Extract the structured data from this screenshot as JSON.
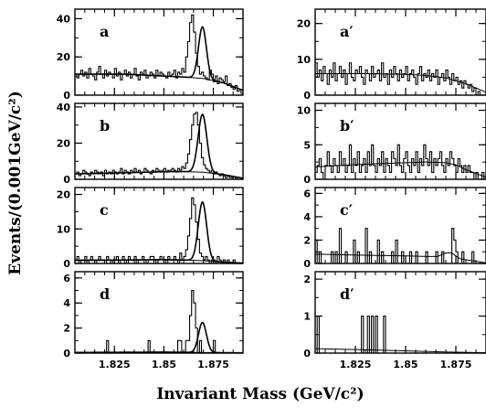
{
  "figure": {
    "ylabel": "Events/(0.001GeV/c²)",
    "xlabel": "Invariant Mass (GeV/c²)"
  },
  "chart_data": [
    {
      "type": "histogram",
      "panel": "a",
      "column": "left",
      "xlim": [
        1.805,
        1.89
      ],
      "ylim": [
        0,
        45
      ],
      "yticks": [
        "0",
        "20",
        "40"
      ],
      "xticks": [
        "1.825",
        "1.85",
        "1.875"
      ],
      "show_x_ticklabels": false,
      "bin_start": 1.805,
      "bin_width": 0.001,
      "counts": [
        10,
        9,
        11,
        13,
        10,
        12,
        9,
        14,
        11,
        10,
        8,
        12,
        15,
        11,
        9,
        13,
        10,
        12,
        11,
        9,
        14,
        10,
        12,
        8,
        11,
        13,
        10,
        12,
        9,
        11,
        14,
        10,
        8,
        12,
        11,
        13,
        9,
        10,
        12,
        11,
        9,
        13,
        10,
        12,
        11,
        10,
        9,
        12,
        10,
        11,
        13,
        9,
        12,
        11,
        14,
        12,
        20,
        28,
        38,
        42,
        33,
        22,
        15,
        11,
        12,
        10,
        9,
        8,
        13,
        11,
        7,
        10,
        6,
        9,
        8,
        7,
        10,
        5,
        6,
        4,
        3,
        5,
        2,
        3,
        1
      ],
      "fit": {
        "background": [
          [
            1.805,
            11
          ],
          [
            1.83,
            11
          ],
          [
            1.85,
            10
          ],
          [
            1.86,
            9.5
          ],
          [
            1.87,
            8.7
          ],
          [
            1.88,
            6.5
          ],
          [
            1.89,
            2.5
          ]
        ],
        "peak_center": 1.8695,
        "peak_sigma": 0.002,
        "peak_amplitude": 27
      }
    },
    {
      "type": "histogram",
      "panel": "b",
      "column": "left",
      "xlim": [
        1.805,
        1.89
      ],
      "ylim": [
        0,
        42
      ],
      "yticks": [
        "0",
        "20",
        "40"
      ],
      "xticks": [
        "1.825",
        "1.85",
        "1.875"
      ],
      "show_x_ticklabels": false,
      "bin_start": 1.805,
      "bin_width": 0.001,
      "counts": [
        3,
        4,
        2,
        3,
        5,
        4,
        3,
        2,
        4,
        3,
        5,
        4,
        3,
        4,
        2,
        5,
        3,
        4,
        3,
        5,
        4,
        3,
        4,
        6,
        3,
        5,
        4,
        3,
        5,
        4,
        6,
        4,
        5,
        3,
        4,
        6,
        5,
        4,
        3,
        5,
        4,
        6,
        5,
        4,
        5,
        6,
        4,
        5,
        5,
        6,
        5,
        4,
        6,
        5,
        7,
        6,
        9,
        14,
        22,
        30,
        36,
        37,
        30,
        20,
        12,
        8,
        6,
        5,
        4,
        5,
        3,
        4,
        3,
        2,
        3,
        2,
        1,
        2,
        1,
        1,
        0,
        1,
        0,
        0,
        0
      ],
      "fit": {
        "background": [
          [
            1.805,
            3
          ],
          [
            1.83,
            3.6
          ],
          [
            1.85,
            4.2
          ],
          [
            1.86,
            4.3
          ],
          [
            1.87,
            3.9
          ],
          [
            1.88,
            2.6
          ],
          [
            1.89,
            0.6
          ]
        ],
        "peak_center": 1.8695,
        "peak_sigma": 0.0022,
        "peak_amplitude": 32
      }
    },
    {
      "type": "histogram",
      "panel": "c",
      "column": "left",
      "xlim": [
        1.805,
        1.89
      ],
      "ylim": [
        0,
        22
      ],
      "yticks": [
        "0",
        "10",
        "20"
      ],
      "xticks": [
        "1.825",
        "1.85",
        "1.875"
      ],
      "show_x_ticklabels": false,
      "bin_start": 1.805,
      "bin_width": 0.001,
      "counts": [
        1,
        2,
        0,
        1,
        1,
        2,
        0,
        1,
        2,
        1,
        0,
        1,
        2,
        1,
        1,
        0,
        2,
        1,
        0,
        1,
        1,
        2,
        0,
        1,
        2,
        1,
        0,
        2,
        1,
        1,
        2,
        0,
        1,
        1,
        2,
        1,
        0,
        1,
        2,
        2,
        1,
        0,
        1,
        2,
        1,
        1,
        0,
        2,
        1,
        1,
        2,
        1,
        0,
        3,
        1,
        2,
        4,
        8,
        13,
        19,
        17,
        12,
        7,
        3,
        2,
        1,
        2,
        1,
        0,
        1,
        1,
        0,
        2,
        1,
        0,
        1,
        0,
        1,
        0,
        0,
        1,
        0,
        0,
        0,
        0
      ],
      "fit": {
        "background": [
          [
            1.805,
            0.9
          ],
          [
            1.83,
            1.0
          ],
          [
            1.85,
            1.1
          ],
          [
            1.86,
            1.0
          ],
          [
            1.87,
            0.8
          ],
          [
            1.88,
            0.4
          ],
          [
            1.89,
            0.1
          ]
        ],
        "peak_center": 1.8695,
        "peak_sigma": 0.0021,
        "peak_amplitude": 17
      }
    },
    {
      "type": "histogram",
      "panel": "d",
      "column": "left",
      "xlim": [
        1.805,
        1.89
      ],
      "ylim": [
        0,
        6.5
      ],
      "yticks": [
        "0",
        "2",
        "4",
        "6"
      ],
      "xticks": [
        "1.825",
        "1.85",
        "1.875"
      ],
      "show_x_ticklabels": true,
      "bin_start": 1.805,
      "bin_width": 0.001,
      "counts": [
        0,
        0,
        0,
        0,
        0,
        0,
        0,
        0,
        0,
        0,
        0,
        0,
        0,
        0,
        0,
        0,
        1,
        0,
        0,
        0,
        0,
        0,
        0,
        0,
        0,
        0,
        0,
        0,
        0,
        0,
        0,
        0,
        0,
        0,
        0,
        0,
        0,
        1,
        0,
        0,
        0,
        0,
        0,
        0,
        0,
        0,
        0,
        0,
        0,
        0,
        0,
        0,
        1,
        1,
        0,
        0,
        1,
        1,
        3,
        5,
        4,
        2,
        0,
        1,
        0,
        0,
        0,
        0,
        0,
        0,
        1,
        0,
        0,
        0,
        0,
        0,
        0,
        0,
        0,
        0,
        0,
        0,
        0,
        0,
        0
      ],
      "fit": {
        "background": [
          [
            1.805,
            0.05
          ],
          [
            1.85,
            0.08
          ],
          [
            1.89,
            0.02
          ]
        ],
        "peak_center": 1.8695,
        "peak_sigma": 0.002,
        "peak_amplitude": 2.4
      }
    },
    {
      "type": "histogram",
      "panel": "a′",
      "column": "right",
      "xlim": [
        1.805,
        1.89
      ],
      "ylim": [
        0,
        24
      ],
      "yticks": [
        "0",
        "10",
        "20"
      ],
      "xticks": [
        "1.825",
        "1.85",
        "1.875"
      ],
      "show_x_ticklabels": false,
      "bin_start": 1.805,
      "bin_width": 0.001,
      "counts": [
        9,
        5,
        7,
        4,
        8,
        6,
        3,
        7,
        5,
        9,
        4,
        6,
        8,
        5,
        7,
        3,
        6,
        9,
        5,
        4,
        7,
        6,
        8,
        5,
        3,
        7,
        6,
        4,
        8,
        5,
        6,
        7,
        4,
        9,
        5,
        6,
        3,
        7,
        5,
        8,
        6,
        4,
        7,
        5,
        6,
        8,
        4,
        6,
        7,
        5,
        3,
        6,
        8,
        4,
        6,
        5,
        7,
        4,
        6,
        5,
        7,
        3,
        5,
        6,
        4,
        7,
        5,
        3,
        6,
        4,
        5,
        3,
        4,
        2,
        4,
        3,
        2,
        3,
        1,
        2,
        0,
        1,
        0,
        0,
        0
      ],
      "fit": {
        "background": [
          [
            1.805,
            6.0
          ],
          [
            1.83,
            6.0
          ],
          [
            1.85,
            5.8
          ],
          [
            1.86,
            5.5
          ],
          [
            1.87,
            4.8
          ],
          [
            1.88,
            3.2
          ],
          [
            1.89,
            0.8
          ]
        ]
      }
    },
    {
      "type": "histogram",
      "panel": "b′",
      "column": "right",
      "xlim": [
        1.805,
        1.89
      ],
      "ylim": [
        0,
        11
      ],
      "yticks": [
        "0",
        "5",
        "10"
      ],
      "xticks": [
        "1.825",
        "1.85",
        "1.875"
      ],
      "show_x_ticklabels": false,
      "bin_start": 1.805,
      "bin_width": 0.001,
      "counts": [
        1,
        2,
        3,
        1,
        0,
        2,
        4,
        2,
        1,
        3,
        2,
        1,
        4,
        2,
        3,
        1,
        2,
        5,
        1,
        3,
        2,
        4,
        1,
        2,
        3,
        1,
        4,
        2,
        5,
        2,
        1,
        3,
        2,
        4,
        1,
        3,
        2,
        1,
        4,
        3,
        2,
        5,
        2,
        1,
        3,
        4,
        2,
        1,
        3,
        2,
        4,
        1,
        3,
        2,
        5,
        3,
        2,
        4,
        1,
        3,
        2,
        3,
        4,
        2,
        1,
        3,
        2,
        4,
        3,
        2,
        1,
        3,
        2,
        1,
        2,
        1,
        2,
        1,
        1,
        0,
        1,
        0,
        0,
        1,
        0
      ],
      "fit": {
        "background": [
          [
            1.805,
            1.8
          ],
          [
            1.83,
            2.2
          ],
          [
            1.85,
            2.4
          ],
          [
            1.86,
            2.5
          ],
          [
            1.87,
            2.4
          ],
          [
            1.875,
            2.1
          ],
          [
            1.88,
            1.4
          ],
          [
            1.89,
            0.3
          ]
        ]
      }
    },
    {
      "type": "histogram",
      "panel": "c′",
      "column": "right",
      "xlim": [
        1.805,
        1.89
      ],
      "ylim": [
        0,
        6.5
      ],
      "yticks": [
        "0",
        "2",
        "4",
        "6"
      ],
      "xticks": [
        "1.825",
        "1.85",
        "1.875"
      ],
      "show_x_ticklabels": false,
      "bin_start": 1.805,
      "bin_width": 0.001,
      "counts": [
        2,
        0,
        1,
        0,
        0,
        0,
        0,
        0,
        1,
        0,
        1,
        0,
        3,
        0,
        0,
        1,
        0,
        0,
        0,
        2,
        0,
        1,
        0,
        0,
        0,
        3,
        0,
        1,
        0,
        0,
        0,
        2,
        0,
        1,
        0,
        0,
        0,
        0,
        1,
        0,
        2,
        0,
        0,
        1,
        0,
        0,
        0,
        1,
        0,
        0,
        1,
        0,
        0,
        0,
        0,
        1,
        0,
        0,
        0,
        0,
        1,
        0,
        0,
        1,
        0,
        0,
        0,
        0,
        3,
        2,
        1,
        0,
        0,
        1,
        0,
        0,
        0,
        0,
        1,
        0,
        0,
        0,
        0,
        0,
        0
      ],
      "fit": {
        "background": [
          [
            1.805,
            0.8
          ],
          [
            1.83,
            0.7
          ],
          [
            1.85,
            0.65
          ],
          [
            1.86,
            0.6
          ],
          [
            1.866,
            0.6
          ],
          [
            1.87,
            0.9
          ],
          [
            1.873,
            0.9
          ],
          [
            1.877,
            0.4
          ],
          [
            1.89,
            0.05
          ]
        ]
      }
    },
    {
      "type": "histogram",
      "panel": "d′",
      "column": "right",
      "xlim": [
        1.805,
        1.89
      ],
      "ylim": [
        0,
        2.2
      ],
      "yticks": [
        "0",
        "1",
        "2"
      ],
      "xticks": [
        "1.825",
        "1.85",
        "1.875"
      ],
      "show_x_ticklabels": true,
      "bin_start": 1.805,
      "bin_width": 0.001,
      "counts": [
        0,
        1,
        0,
        0,
        0,
        0,
        0,
        0,
        0,
        0,
        0,
        0,
        0,
        0,
        0,
        0,
        0,
        0,
        0,
        0,
        0,
        0,
        0,
        1,
        0,
        0,
        1,
        0,
        1,
        0,
        1,
        0,
        0,
        0,
        1,
        0,
        0,
        0,
        0,
        0,
        0,
        0,
        0,
        0,
        0,
        0,
        0,
        0,
        0,
        0,
        0,
        0,
        0,
        0,
        0,
        0,
        0,
        0,
        0,
        0,
        0,
        0,
        0,
        0,
        0,
        0,
        0,
        0,
        0,
        0,
        0,
        0,
        0,
        0,
        0,
        0,
        0,
        0,
        0,
        0,
        0,
        0,
        0,
        0,
        0
      ],
      "fit": {
        "background": [
          [
            1.805,
            0.12
          ],
          [
            1.83,
            0.09
          ],
          [
            1.85,
            0.06
          ],
          [
            1.87,
            0.03
          ],
          [
            1.89,
            0.01
          ]
        ]
      }
    }
  ]
}
